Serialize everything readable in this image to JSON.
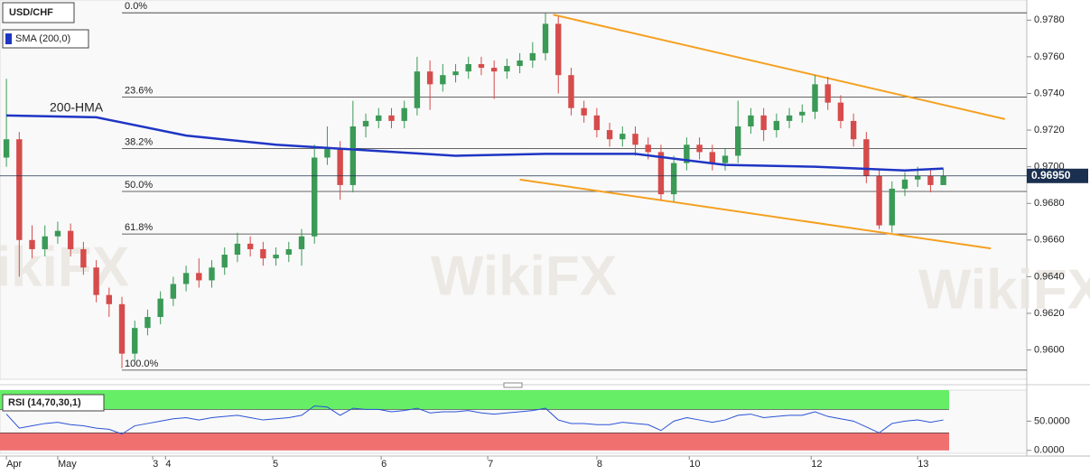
{
  "chart_data": {
    "type": "candlestick",
    "title": "USD/CHF",
    "indicator_label": "SMA (200,0)",
    "watermark": "WikiFX",
    "xlim": [
      -0.5,
      79.5
    ],
    "xticks": [
      {
        "value": 0,
        "label": "Apr"
      },
      {
        "value": 4,
        "label": "May"
      },
      {
        "value": 11.4,
        "label": "3"
      },
      {
        "value": 12.4,
        "label": "4"
      },
      {
        "value": 20.75,
        "label": "5"
      },
      {
        "value": 29.2,
        "label": "6"
      },
      {
        "value": 37.5,
        "label": "7"
      },
      {
        "value": 46,
        "label": "8"
      },
      {
        "value": 53.2,
        "label": "10"
      },
      {
        "value": 62.7,
        "label": "12"
      },
      {
        "value": 71,
        "label": "13"
      }
    ],
    "ylim": [
      0.9584,
      0.9791
    ],
    "yticks": [
      {
        "value": 0.96,
        "label": "0.9600"
      },
      {
        "value": 0.962,
        "label": "0.9620"
      },
      {
        "value": 0.964,
        "label": "0.9640"
      },
      {
        "value": 0.966,
        "label": "0.9660"
      },
      {
        "value": 0.968,
        "label": "0.9680"
      },
      {
        "value": 0.97,
        "label": "0.9700"
      },
      {
        "value": 0.972,
        "label": "0.9720"
      },
      {
        "value": 0.974,
        "label": "0.9740"
      },
      {
        "value": 0.976,
        "label": "0.9760"
      },
      {
        "value": 0.978,
        "label": "0.9780"
      }
    ],
    "up_color": "#3a9a56",
    "down_color": "#d64b4b",
    "open": [
      0.9705,
      0.9715,
      0.966,
      0.9655,
      0.9662,
      0.9665,
      0.9655,
      0.9645,
      0.963,
      0.9625,
      0.9598,
      0.9612,
      0.9618,
      0.9628,
      0.9636,
      0.9642,
      0.9638,
      0.9645,
      0.9652,
      0.9658,
      0.9655,
      0.965,
      0.9652,
      0.9655,
      0.9662,
      0.9705,
      0.971,
      0.969,
      0.9722,
      0.9725,
      0.9728,
      0.9725,
      0.9732,
      0.9752,
      0.9745,
      0.975,
      0.9752,
      0.9756,
      0.9754,
      0.9752,
      0.9755,
      0.9758,
      0.9762,
      0.9778,
      0.975,
      0.9732,
      0.9728,
      0.972,
      0.9715,
      0.9718,
      0.9712,
      0.9708,
      0.9685,
      0.9702,
      0.9712,
      0.9708,
      0.9702,
      0.9706,
      0.9722,
      0.9728,
      0.972,
      0.9725,
      0.9728,
      0.973,
      0.9745,
      0.9735,
      0.9725,
      0.9715,
      0.9695,
      0.9668,
      0.9688,
      0.9693,
      0.9695,
      0.969
    ],
    "high": [
      0.9748,
      0.9719,
      0.9668,
      0.9668,
      0.967,
      0.9669,
      0.9659,
      0.9649,
      0.9634,
      0.9629,
      0.9616,
      0.9622,
      0.9632,
      0.964,
      0.9646,
      0.965,
      0.9649,
      0.9656,
      0.9664,
      0.9662,
      0.9659,
      0.9656,
      0.9659,
      0.9666,
      0.9712,
      0.9722,
      0.9714,
      0.9736,
      0.9729,
      0.9732,
      0.9732,
      0.9736,
      0.976,
      0.9758,
      0.9756,
      0.9756,
      0.976,
      0.976,
      0.9758,
      0.9759,
      0.9762,
      0.9768,
      0.9784,
      0.9782,
      0.9754,
      0.9736,
      0.9732,
      0.9724,
      0.9722,
      0.9722,
      0.9716,
      0.9712,
      0.9706,
      0.9716,
      0.9716,
      0.9712,
      0.971,
      0.9736,
      0.9732,
      0.9732,
      0.9729,
      0.9732,
      0.9734,
      0.975,
      0.9749,
      0.9739,
      0.9729,
      0.9719,
      0.9699,
      0.9692,
      0.9697,
      0.97,
      0.9699,
      0.9699
    ],
    "low": [
      0.97,
      0.964,
      0.965,
      0.9651,
      0.9658,
      0.9651,
      0.9641,
      0.9626,
      0.9618,
      0.959,
      0.9594,
      0.9608,
      0.9614,
      0.9624,
      0.9632,
      0.9634,
      0.9634,
      0.9641,
      0.9648,
      0.9651,
      0.9646,
      0.9646,
      0.9648,
      0.9646,
      0.9658,
      0.9701,
      0.9682,
      0.9686,
      0.9716,
      0.9721,
      0.9721,
      0.9721,
      0.9728,
      0.9731,
      0.9741,
      0.9746,
      0.9748,
      0.975,
      0.9737,
      0.9748,
      0.9751,
      0.9754,
      0.9758,
      0.974,
      0.9728,
      0.9724,
      0.9716,
      0.9711,
      0.9711,
      0.9706,
      0.9704,
      0.9682,
      0.9681,
      0.9698,
      0.9704,
      0.9698,
      0.9698,
      0.9702,
      0.9718,
      0.9714,
      0.9716,
      0.9721,
      0.9724,
      0.9726,
      0.9731,
      0.9721,
      0.9711,
      0.9691,
      0.9666,
      0.9664,
      0.9684,
      0.9689,
      0.9686,
      0.969
    ],
    "close": [
      0.9715,
      0.966,
      0.9655,
      0.9662,
      0.9665,
      0.9655,
      0.9645,
      0.963,
      0.9625,
      0.9598,
      0.9612,
      0.9618,
      0.9628,
      0.9636,
      0.9642,
      0.9638,
      0.9645,
      0.9652,
      0.9658,
      0.9655,
      0.965,
      0.9652,
      0.9655,
      0.9662,
      0.9705,
      0.971,
      0.969,
      0.9722,
      0.9725,
      0.9728,
      0.9725,
      0.9732,
      0.9752,
      0.9745,
      0.975,
      0.9752,
      0.9756,
      0.9754,
      0.9752,
      0.9755,
      0.9758,
      0.9762,
      0.9778,
      0.975,
      0.9732,
      0.9728,
      0.972,
      0.9715,
      0.9718,
      0.9712,
      0.9708,
      0.9685,
      0.9702,
      0.9712,
      0.9708,
      0.9702,
      0.9706,
      0.9722,
      0.9728,
      0.972,
      0.9725,
      0.9728,
      0.973,
      0.9745,
      0.9735,
      0.9725,
      0.9715,
      0.9695,
      0.9668,
      0.9688,
      0.9693,
      0.9695,
      0.969,
      0.9695
    ],
    "last_price": {
      "value": 0.9695,
      "label": "0.96950"
    },
    "hma": {
      "name": "200-HMA",
      "color": "#1f35c4",
      "x": [
        0,
        7,
        14,
        21,
        28,
        35,
        42,
        49,
        56,
        63,
        70,
        73
      ],
      "values": [
        0.9728,
        0.9727,
        0.9717,
        0.9712,
        0.9709,
        0.9706,
        0.9707,
        0.9707,
        0.9701,
        0.97,
        0.9698,
        0.9699
      ]
    },
    "fib_levels": [
      {
        "label": "0.0%",
        "value": 0.9784
      },
      {
        "label": "23.6%",
        "value": 0.9738
      },
      {
        "label": "38.2%",
        "value": 0.971
      },
      {
        "label": "50.0%",
        "value": 0.96865
      },
      {
        "label": "61.8%",
        "value": 0.96633
      },
      {
        "label": "100.0%",
        "value": 0.9589
      }
    ],
    "fib_start": 9,
    "trendlines": [
      {
        "color": "#f5a020",
        "x": [
          42.6,
          77.8
        ],
        "values": [
          0.9783,
          0.9726
        ]
      },
      {
        "color": "#f5a020",
        "x": [
          40.0,
          76.7
        ],
        "values": [
          0.9693,
          0.96554
        ]
      }
    ],
    "rsi": {
      "name": "RSI (14,70,30,1)",
      "color": "#2a52d6",
      "ylim": [
        -5,
        103
      ],
      "yticks": [
        {
          "value": 0,
          "label": "0.0000"
        },
        {
          "value": 50,
          "label": "50.0000"
        }
      ],
      "overbought": 70,
      "oversold": 30,
      "overbought_color": "#66ee66",
      "oversold_color": "#f07070",
      "values": [
        62,
        38,
        42,
        46,
        48,
        44,
        42,
        38,
        36,
        28,
        42,
        46,
        50,
        54,
        56,
        52,
        56,
        58,
        60,
        56,
        52,
        54,
        56,
        60,
        76,
        74,
        60,
        72,
        70,
        70,
        66,
        68,
        72,
        64,
        66,
        66,
        68,
        64,
        62,
        64,
        66,
        68,
        72,
        52,
        46,
        46,
        44,
        44,
        48,
        46,
        44,
        34,
        50,
        56,
        52,
        48,
        52,
        60,
        62,
        56,
        58,
        60,
        60,
        66,
        58,
        54,
        50,
        40,
        30,
        46,
        50,
        52,
        48,
        52
      ]
    }
  }
}
